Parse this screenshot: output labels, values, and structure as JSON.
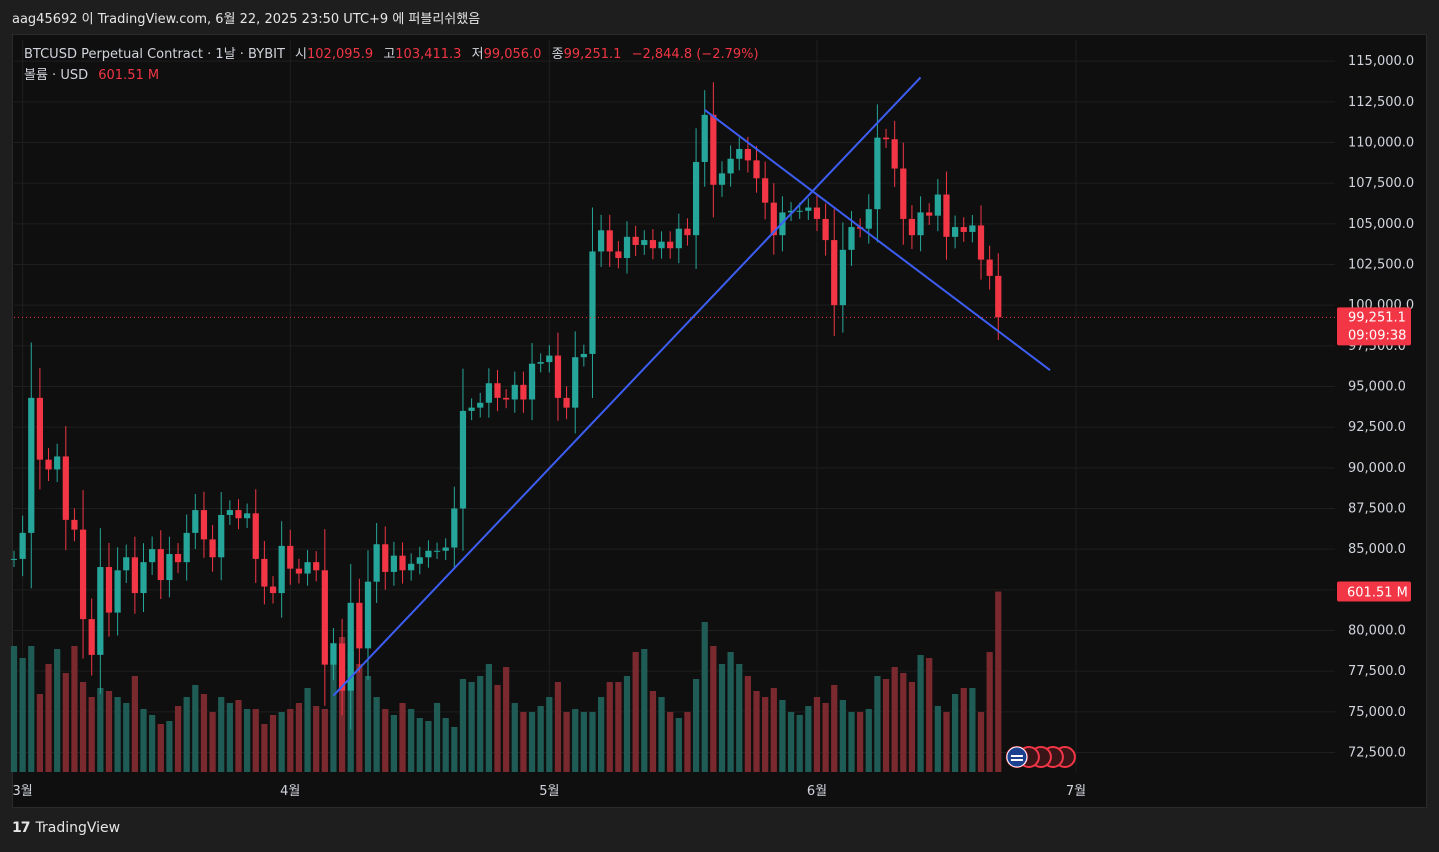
{
  "header": {
    "text": "aag45692 이 TradingView.com, 6월 22, 2025 23:50 UTC+9 에 퍼블리쉬했음"
  },
  "legend": {
    "symbol": "BTCUSD Perpetual Contract · 1날 · BYBIT",
    "open_label": "시",
    "open": "102,095.9",
    "high_label": "고",
    "high": "103,411.3",
    "low_label": "저",
    "low": "99,056.0",
    "close_label": "종",
    "close": "99,251.1",
    "change": "−2,844.8 (−2.79%)",
    "volume_label": "볼륨 · USD",
    "volume": "601.51 M"
  },
  "badges": {
    "price": "99,251.1",
    "countdown": "09:09:38",
    "volume": "601.51 M"
  },
  "footer": {
    "logo": "17",
    "brand": "TradingView"
  },
  "colors": {
    "up": "#26a69a",
    "down": "#f23645",
    "up_vol": "#1f5c55",
    "down_vol": "#7a2a2e",
    "trendline": "#3d5ef5",
    "grid": "#1f1f1f"
  },
  "chart_data": {
    "type": "candlestick",
    "y_ticks": [
      "72,500.0",
      "75,000.0",
      "77,500.0",
      "80,000.0",
      "82,500.0",
      "85,000.0",
      "87,500.0",
      "90,000.0",
      "92,500.0",
      "95,000.0",
      "97,500.0",
      "100,000.0",
      "102,500.0",
      "105,000.0",
      "107,500.0",
      "110,000.0",
      "112,500.0",
      "115,000.0"
    ],
    "y_tick_values": [
      72500,
      75000,
      77500,
      80000,
      82500,
      85000,
      87500,
      90000,
      92500,
      95000,
      97500,
      100000,
      102500,
      105000,
      107500,
      110000,
      112500,
      115000
    ],
    "ylim": [
      71300,
      116300
    ],
    "x_labels": [
      {
        "label": "3월",
        "date": "2025-03-01"
      },
      {
        "label": "4월",
        "date": "2025-04-01"
      },
      {
        "label": "5월",
        "date": "2025-05-01"
      },
      {
        "label": "6월",
        "date": "2025-06-01"
      },
      {
        "label": "7월",
        "date": "2025-07-01"
      }
    ],
    "xlim": [
      "2025-02-28",
      "2025-07-31"
    ],
    "start_date": "2025-02-28",
    "last_price": 99251.1,
    "candles_close": [
      84400,
      86000,
      94300,
      90500,
      89900,
      90700,
      86800,
      86200,
      80700,
      78500,
      83900,
      81100,
      83700,
      84500,
      82300,
      84200,
      85000,
      83100,
      84700,
      84200,
      86000,
      87400,
      85600,
      84500,
      87100,
      87400,
      86900,
      87200,
      84400,
      82700,
      82300,
      85200,
      83800,
      83500,
      84200,
      83700,
      77900,
      79200,
      76300,
      81700,
      78900,
      83000,
      85300,
      83600,
      84600,
      83700,
      84100,
      84500,
      84900,
      84900,
      85100,
      87500,
      93500,
      93700,
      94000,
      95200,
      94300,
      94200,
      95100,
      94200,
      96400,
      96500,
      96900,
      94300,
      93700,
      96800,
      97000,
      103300,
      104600,
      103300,
      102900,
      104200,
      103700,
      104000,
      103500,
      103900,
      103500,
      104700,
      104300,
      108800,
      111700,
      107400,
      108100,
      109000,
      109600,
      108900,
      107800,
      106300,
      104300,
      105700,
      105800,
      105800,
      106000,
      105300,
      104000,
      100000,
      103400,
      104800,
      104700,
      105900,
      110300,
      110200,
      108400,
      105300,
      104300,
      105700,
      105500,
      106800,
      104200,
      104800,
      104500,
      104900,
      102800,
      101800,
      99251.1
    ],
    "volume_scale_note": "volume in millions USD, approximate",
    "volumes": [
      420,
      380,
      420,
      260,
      360,
      410,
      330,
      420,
      300,
      250,
      280,
      270,
      250,
      230,
      320,
      210,
      190,
      160,
      170,
      220,
      250,
      290,
      260,
      200,
      250,
      230,
      240,
      210,
      210,
      160,
      190,
      200,
      210,
      230,
      280,
      220,
      210,
      430,
      450,
      400,
      360,
      320,
      250,
      210,
      190,
      230,
      210,
      180,
      170,
      230,
      180,
      150,
      310,
      300,
      320,
      360,
      290,
      350,
      230,
      200,
      200,
      220,
      250,
      300,
      200,
      210,
      200,
      200,
      250,
      300,
      300,
      320,
      400,
      410,
      270,
      250,
      200,
      180,
      200,
      310,
      500,
      420,
      360,
      400,
      360,
      320,
      270,
      250,
      280,
      240,
      200,
      190,
      220,
      250,
      230,
      290,
      240,
      200,
      200,
      210,
      320,
      310,
      350,
      330,
      300,
      390,
      380,
      220,
      200,
      260,
      280,
      280,
      200,
      400,
      601.51
    ]
  }
}
